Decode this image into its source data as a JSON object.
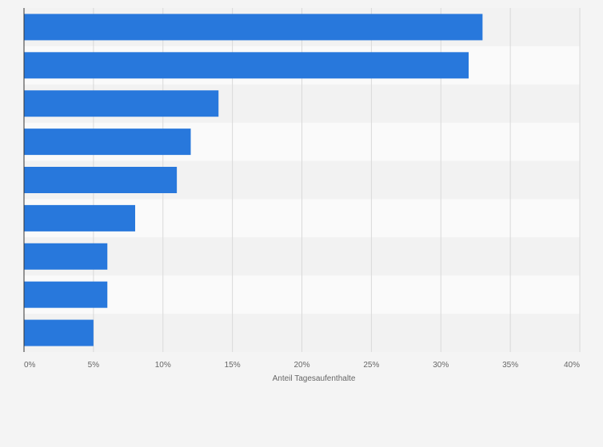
{
  "chart_data": {
    "type": "bar",
    "orientation": "horizontal",
    "categories": [
      "",
      "",
      "",
      "",
      "",
      "",
      "",
      "",
      ""
    ],
    "series": [
      {
        "values": [
          33,
          32,
          14,
          12,
          11,
          8,
          6,
          6,
          5
        ]
      }
    ],
    "xlabel": "Anteil Tagesaufenthalte",
    "xlim": [
      0,
      40
    ],
    "x_ticks": [
      0,
      5,
      10,
      15,
      20,
      25,
      30,
      35,
      40
    ],
    "x_tick_labels": [
      "0%",
      "5%",
      "10%",
      "15%",
      "20%",
      "25%",
      "30%",
      "35%",
      "40%"
    ],
    "grid": true,
    "legend": "none",
    "colors": {
      "bar": "#2878dc",
      "band_dark": "#f2f2f2",
      "band_light": "#fafafa",
      "grid": "#d9d9d9",
      "axis": "#333333",
      "text": "#666666",
      "background": "#f4f4f4"
    }
  }
}
